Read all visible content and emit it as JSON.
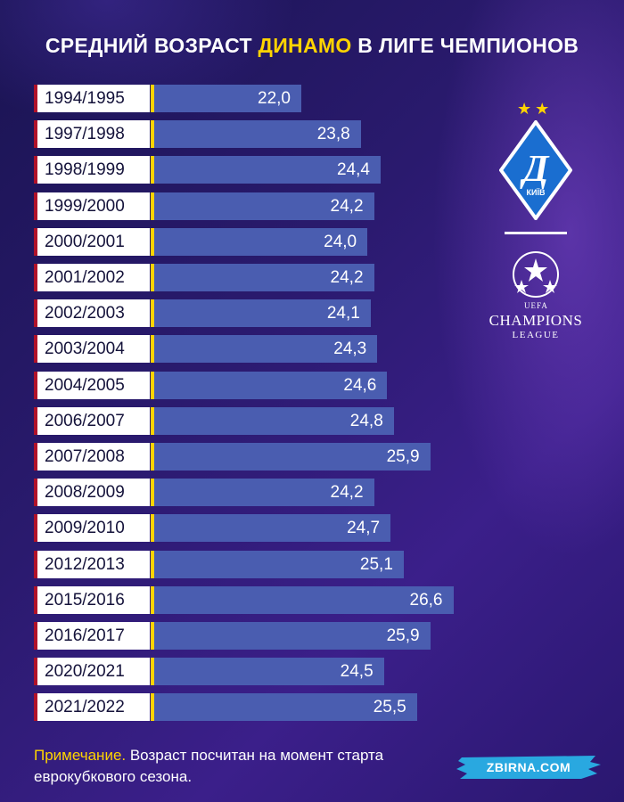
{
  "header": {
    "title_before": "СРЕДНИЙ ВОЗРАСТ ",
    "title_highlight": "ДИНАМО",
    "title_after": " В ЛИГЕ ЧЕМПИОНОВ"
  },
  "chart_data": {
    "type": "bar",
    "orientation": "horizontal",
    "categories": [
      "1994/1995",
      "1997/1998",
      "1998/1999",
      "1999/2000",
      "2000/2001",
      "2001/2002",
      "2002/2003",
      "2003/2004",
      "2004/2005",
      "2006/2007",
      "2007/2008",
      "2008/2009",
      "2009/2010",
      "2012/2013",
      "2015/2016",
      "2016/2017",
      "2020/2021",
      "2021/2022"
    ],
    "values": [
      22.0,
      23.8,
      24.4,
      24.2,
      24.0,
      24.2,
      24.1,
      24.3,
      24.6,
      24.8,
      25.9,
      24.2,
      24.7,
      25.1,
      26.6,
      25.9,
      24.5,
      25.5
    ],
    "value_labels": [
      "22,0",
      "23,8",
      "24,4",
      "24,2",
      "24,0",
      "24,2",
      "24,1",
      "24,3",
      "24,6",
      "24,8",
      "25,9",
      "24,2",
      "24,7",
      "25,1",
      "26,6",
      "25,9",
      "24,5",
      "25,5"
    ],
    "bar_color": "#4a5db0"
  },
  "logos": {
    "club_text": "КИЇВ",
    "club_letter": "Д",
    "stars": "★★",
    "cl_uefa": "UEFA",
    "cl_main": "CHAMPIONS",
    "cl_league": "LEAGUE"
  },
  "note": {
    "label": "Примечание.",
    "text": " Возраст посчитан на момент старта еврокубкового сезона."
  },
  "brand": {
    "name": "ZBIRNA.COM",
    "color": "#29a8e0"
  },
  "colors": {
    "accent": "#ffd400",
    "season_border": "#b0122a"
  }
}
